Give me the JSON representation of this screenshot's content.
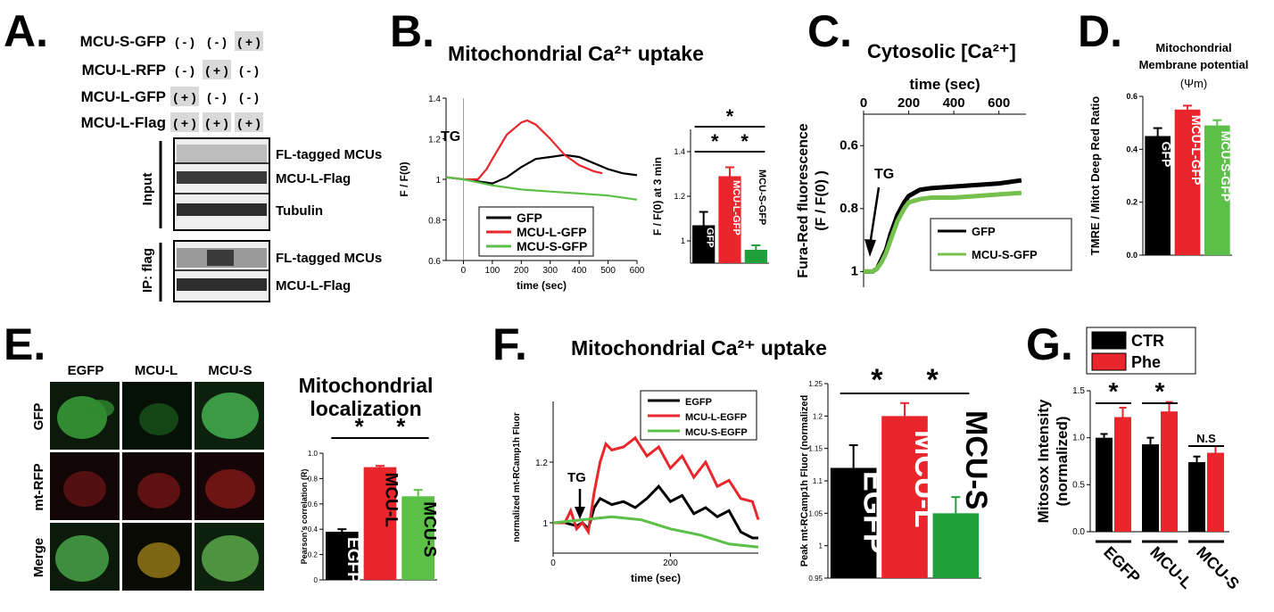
{
  "panels": {
    "A": {
      "letter": "A.",
      "rows": [
        {
          "label": "MCU-S-GFP",
          "marks": [
            "( - )",
            "( - )",
            "( + )"
          ]
        },
        {
          "label": "MCU-L-RFP",
          "marks": [
            "( - )",
            "( + )",
            "( - )"
          ]
        },
        {
          "label": "MCU-L-GFP",
          "marks": [
            "( + )",
            "( - )",
            "( - )"
          ]
        },
        {
          "label": "MCU-L-Flag",
          "marks": [
            "( + )",
            "( + )",
            "( + )"
          ]
        }
      ],
      "input_label": "Input",
      "ip_label": "IP: flag",
      "blot_labels": [
        "FL-tagged MCUs",
        "MCU-L-Flag",
        "Tubulin",
        "FL-tagged MCUs",
        "MCU-L-Flag"
      ]
    },
    "B": {
      "letter": "B.",
      "title": "Mitochondrial Ca²⁺ uptake",
      "annotation": "TG"
    },
    "C": {
      "letter": "C.",
      "title": "Cytosolic [Ca²⁺]",
      "annotation": "TG"
    },
    "D": {
      "letter": "D.",
      "title_line1": "Mitochondrial",
      "title_line2": "Membrane potential",
      "title_line3": "(Ψm)"
    },
    "E": {
      "letter": "E.",
      "col_labels": [
        "EGFP",
        "MCU-L",
        "MCU-S"
      ],
      "row_labels": [
        "GFP",
        "mt-RFP",
        "Merge"
      ],
      "chart_title_line1": "Mitochondrial",
      "chart_title_line2": "localization"
    },
    "F": {
      "letter": "F.",
      "title": "Mitochondrial Ca²⁺ uptake",
      "annotation": "TG"
    },
    "G": {
      "letter": "G."
    }
  },
  "chart_data": [
    {
      "id": "B-line",
      "type": "line",
      "xlabel": "time (sec)",
      "ylabel": "F / F(0)",
      "xlim": [
        -60,
        600
      ],
      "ylim": [
        0.6,
        1.4
      ],
      "xticks": [
        0,
        100,
        200,
        300,
        400,
        500,
        600
      ],
      "yticks": [
        0.6,
        0.8,
        1.0,
        1.2,
        1.4
      ],
      "series": [
        {
          "name": "GFP",
          "color": "#000000",
          "x": [
            -60,
            0,
            50,
            100,
            150,
            200,
            250,
            300,
            350,
            400,
            450,
            500,
            550,
            600
          ],
          "y": [
            1.01,
            1.0,
            0.99,
            0.98,
            1.01,
            1.06,
            1.1,
            1.11,
            1.12,
            1.11,
            1.08,
            1.05,
            1.03,
            1.02
          ]
        },
        {
          "name": "MCU-L-GFP",
          "color": "#e8262c",
          "x": [
            -60,
            0,
            50,
            80,
            100,
            150,
            200,
            220,
            250,
            300,
            350,
            400,
            450,
            480
          ],
          "y": [
            1.01,
            1.0,
            1.0,
            1.05,
            1.1,
            1.22,
            1.28,
            1.29,
            1.27,
            1.2,
            1.12,
            1.07,
            1.04,
            1.03
          ]
        },
        {
          "name": "MCU-S-GFP",
          "color": "#5cbf48",
          "x": [
            -60,
            0,
            100,
            200,
            300,
            400,
            500,
            600
          ],
          "y": [
            1.01,
            1.0,
            0.97,
            0.95,
            0.94,
            0.93,
            0.92,
            0.9
          ]
        }
      ]
    },
    {
      "id": "B-bar",
      "type": "bar",
      "ylabel": "F / F(0) at 3 min",
      "categories": [
        "GFP",
        "MCU-L-GFP",
        "MCU-S-GFP"
      ],
      "values": [
        1.07,
        1.29,
        0.96
      ],
      "errors": [
        0.06,
        0.04,
        0.02
      ],
      "colors": [
        "#000000",
        "#e8262c",
        "#1fa03a"
      ],
      "ylim": [
        0.9,
        1.5
      ],
      "yticks": [
        1.0,
        1.2,
        1.4
      ],
      "significance": [
        "*",
        "*",
        "*"
      ]
    },
    {
      "id": "C-line",
      "type": "line",
      "title": "time (sec)",
      "ylabel": "Fura-Red fluorescence (F / F(0) )",
      "xlim": [
        0,
        720
      ],
      "ylim": [
        0.5,
        1.05
      ],
      "y_inverted": true,
      "xticks": [
        0,
        200,
        400,
        600
      ],
      "yticks": [
        0.6,
        0.8,
        1
      ],
      "series": [
        {
          "name": "GFP",
          "color": "#000000",
          "x": [
            0,
            40,
            60,
            80,
            100,
            120,
            150,
            180,
            200,
            250,
            300,
            400,
            500,
            600,
            700
          ],
          "y": [
            1.0,
            1.0,
            0.99,
            0.96,
            0.93,
            0.88,
            0.82,
            0.78,
            0.76,
            0.74,
            0.735,
            0.73,
            0.725,
            0.72,
            0.71
          ]
        },
        {
          "name": "MCU-S-GFP",
          "color": "#76c14e",
          "x": [
            0,
            40,
            60,
            80,
            100,
            120,
            150,
            180,
            200,
            250,
            300,
            400,
            500,
            600,
            700
          ],
          "y": [
            1.0,
            1.0,
            0.99,
            0.97,
            0.94,
            0.9,
            0.84,
            0.8,
            0.78,
            0.77,
            0.765,
            0.765,
            0.76,
            0.755,
            0.75
          ]
        }
      ]
    },
    {
      "id": "D-bar",
      "type": "bar",
      "ylabel": "TMRE / Mitot Deep Red Ratio",
      "categories": [
        "GFP",
        "MCU-L-GFP",
        "MCU-S-GFP"
      ],
      "values": [
        0.45,
        0.55,
        0.49
      ],
      "errors": [
        0.03,
        0.015,
        0.02
      ],
      "colors": [
        "#000000",
        "#e8262c",
        "#5cbf48"
      ],
      "ylim": [
        0,
        0.6
      ],
      "yticks": [
        0.0,
        0.2,
        0.4,
        0.6
      ]
    },
    {
      "id": "E-bar",
      "type": "bar",
      "ylabel": "Pearson's correlation (R)",
      "categories": [
        "EGFP",
        "MCU-L",
        "MCU-S"
      ],
      "values": [
        0.38,
        0.89,
        0.66
      ],
      "errors": [
        0.02,
        0.01,
        0.05
      ],
      "colors": [
        "#000000",
        "#e8262c",
        "#5cbf48"
      ],
      "ylim": [
        0,
        1.0
      ],
      "yticks": [
        0,
        0.2,
        0.4,
        0.6,
        0.8,
        1.0
      ],
      "significance": [
        "*",
        "*"
      ]
    },
    {
      "id": "F-line",
      "type": "line",
      "xlabel": "time (sec)",
      "ylabel": "normalized mt-RCamp1h Fluor",
      "xlim": [
        0,
        350
      ],
      "ylim": [
        0.9,
        1.4
      ],
      "xticks": [
        0,
        200
      ],
      "yticks": [
        1.0,
        1.2
      ],
      "series": [
        {
          "name": "EGFP",
          "color": "#000000",
          "x": [
            0,
            20,
            40,
            50,
            60,
            70,
            80,
            100,
            120,
            140,
            160,
            180,
            200,
            220,
            240,
            260,
            280,
            300,
            320,
            340,
            350
          ],
          "y": [
            1.0,
            1.0,
            0.99,
            1.0,
            0.98,
            1.05,
            1.08,
            1.06,
            1.07,
            1.05,
            1.08,
            1.12,
            1.07,
            1.09,
            1.03,
            1.05,
            1.02,
            1.04,
            0.97,
            0.95,
            0.95
          ]
        },
        {
          "name": "MCU-L-EGFP",
          "color": "#e8262c",
          "x": [
            0,
            20,
            30,
            40,
            50,
            60,
            70,
            80,
            90,
            100,
            120,
            140,
            160,
            180,
            200,
            220,
            240,
            260,
            280,
            300,
            320,
            340,
            350
          ],
          "y": [
            1.0,
            1.0,
            1.04,
            0.98,
            1.0,
            0.97,
            1.1,
            1.2,
            1.26,
            1.24,
            1.25,
            1.28,
            1.22,
            1.25,
            1.18,
            1.22,
            1.15,
            1.2,
            1.12,
            1.14,
            1.08,
            1.07,
            1.01
          ]
        },
        {
          "name": "MCU-S-EGFP",
          "color": "#5cbf48",
          "x": [
            0,
            50,
            100,
            150,
            200,
            250,
            300,
            350
          ],
          "y": [
            1.0,
            1.01,
            1.02,
            1.01,
            0.98,
            0.96,
            0.93,
            0.92
          ]
        }
      ]
    },
    {
      "id": "F-bar",
      "type": "bar",
      "ylabel": "Peak mt-RCamp1h Fluor (normalized",
      "categories": [
        "EGFP",
        "MCU-L",
        "MCU-S"
      ],
      "values": [
        1.12,
        1.2,
        1.05
      ],
      "errors": [
        0.035,
        0.02,
        0.025
      ],
      "colors": [
        "#000000",
        "#e8262c",
        "#1fa03a"
      ],
      "ylim": [
        0.95,
        1.25
      ],
      "yticks": [
        0.95,
        1,
        1.05,
        1.1,
        1.15,
        1.2,
        1.25
      ],
      "significance": [
        "*",
        "*"
      ]
    },
    {
      "id": "G-bar",
      "type": "bar",
      "ylabel": "Mitosox Intensity (normalized)",
      "categories": [
        "EGFP",
        "MCU-L",
        "MCU-S"
      ],
      "series": [
        {
          "name": "CTR",
          "color": "#000000",
          "values": [
            1.0,
            0.93,
            0.74
          ],
          "errors": [
            0.04,
            0.07,
            0.06
          ]
        },
        {
          "name": "Phe",
          "color": "#e8262c",
          "values": [
            1.22,
            1.28,
            0.84
          ],
          "errors": [
            0.1,
            0.1,
            0.07
          ]
        }
      ],
      "ylim": [
        0,
        1.5
      ],
      "yticks": [
        0.0,
        0.5,
        1.0,
        1.5
      ],
      "significance": [
        "*",
        "*",
        "N.S"
      ]
    }
  ]
}
